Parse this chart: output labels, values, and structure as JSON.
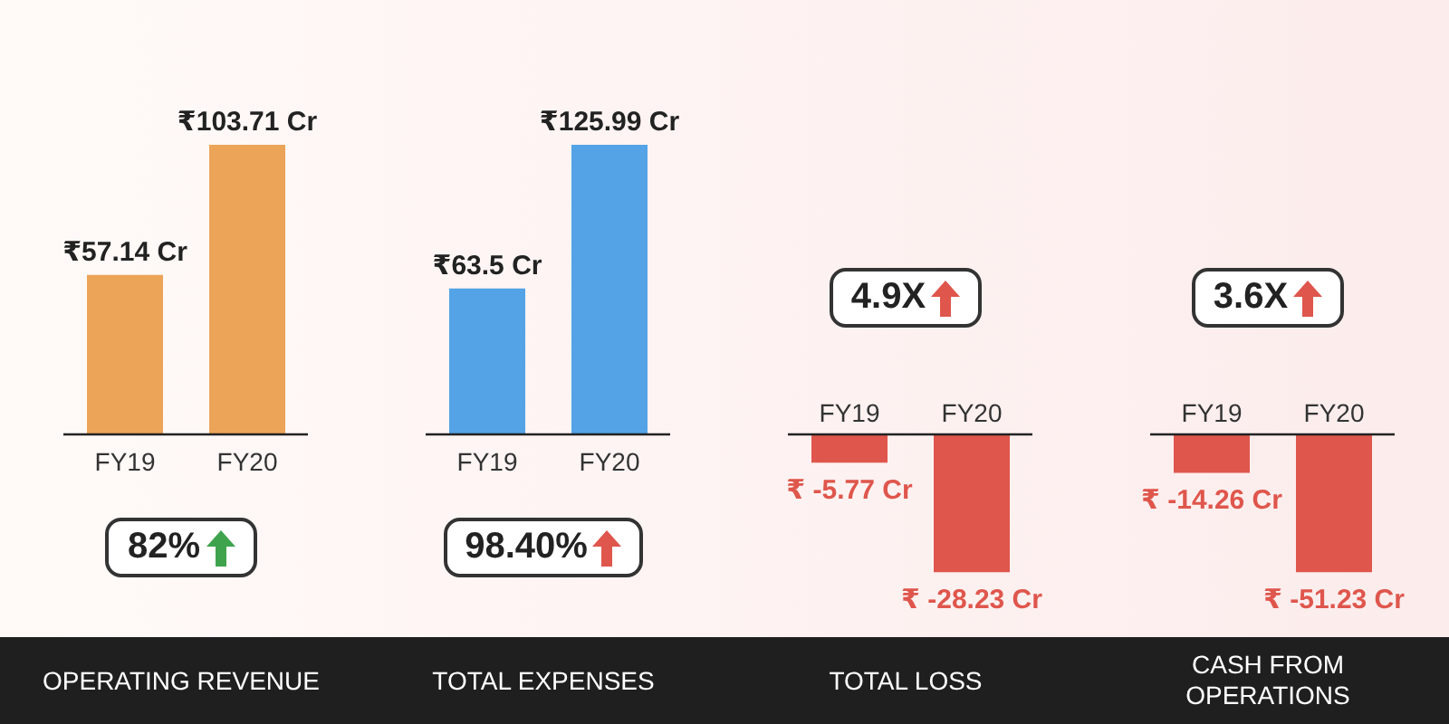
{
  "chart_data": [
    {
      "type": "bar",
      "categories": [
        "FY19",
        "FY20"
      ],
      "values": [
        57.14,
        103.71
      ],
      "colors": [
        "#eca458",
        "#eca458"
      ],
      "value_labels": [
        "₹57.14 Cr",
        "₹103.71 Cr"
      ],
      "xlabel": "OPERATING REVENUE",
      "annotations": [
        "82%"
      ]
    },
    {
      "type": "bar",
      "categories": [
        "FY19",
        "FY20"
      ],
      "values": [
        63.5,
        125.99
      ],
      "colors": [
        "#53a3e6",
        "#53a3e6"
      ],
      "value_labels": [
        "₹63.5 Cr",
        "₹125.99 Cr"
      ],
      "xlabel": "TOTAL EXPENSES",
      "annotations": [
        "98.40%"
      ]
    },
    {
      "type": "bar",
      "categories": [
        "FY19",
        "FY20"
      ],
      "values": [
        -5.77,
        -28.23
      ],
      "colors": [
        "#df564c",
        "#df564c"
      ],
      "value_labels": [
        "₹ -5.77 Cr",
        "₹ -28.23 Cr"
      ],
      "xlabel": "TOTAL LOSS",
      "annotations": [
        "4.9X"
      ]
    },
    {
      "type": "bar",
      "categories": [
        "FY19",
        "FY20"
      ],
      "values": [
        -14.26,
        -51.23
      ],
      "colors": [
        "#df564c",
        "#df564c"
      ],
      "value_labels": [
        "₹ -14.26 Cr",
        "₹ -51.23 Cr"
      ],
      "xlabel": "CASH FROM OPERATIONS",
      "annotations": [
        "3.6X"
      ]
    }
  ]
}
